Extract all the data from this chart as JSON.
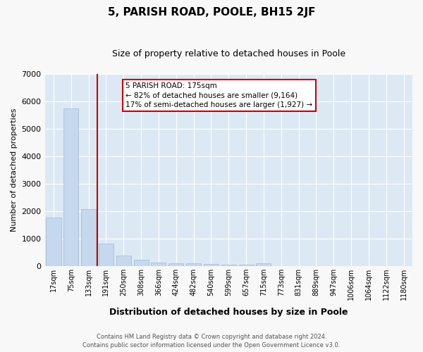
{
  "title": "5, PARISH ROAD, POOLE, BH15 2JF",
  "subtitle": "Size of property relative to detached houses in Poole",
  "xlabel": "Distribution of detached houses by size in Poole",
  "ylabel": "Number of detached properties",
  "bar_labels": [
    "17sqm",
    "75sqm",
    "133sqm",
    "191sqm",
    "250sqm",
    "308sqm",
    "366sqm",
    "424sqm",
    "482sqm",
    "540sqm",
    "599sqm",
    "657sqm",
    "715sqm",
    "773sqm",
    "831sqm",
    "889sqm",
    "947sqm",
    "1006sqm",
    "1064sqm",
    "1122sqm",
    "1180sqm"
  ],
  "bar_values": [
    1750,
    5750,
    2075,
    800,
    375,
    230,
    120,
    90,
    90,
    70,
    50,
    50,
    90,
    0,
    0,
    0,
    0,
    0,
    0,
    0,
    0
  ],
  "bar_color": "#c5d8ed",
  "bar_edge_color": "#a0b8d0",
  "annotation_text": "5 PARISH ROAD: 175sqm\n← 82% of detached houses are smaller (9,164)\n17% of semi-detached houses are larger (1,927) →",
  "annotation_box_facecolor": "#ffffff",
  "annotation_box_edgecolor": "#cc0000",
  "vline_x": 2.5,
  "vline_color": "#cc0000",
  "plot_bg_color": "#dce9f5",
  "fig_bg_color": "#f8f8f8",
  "grid_color": "#ffffff",
  "ylim": [
    0,
    7000
  ],
  "yticks": [
    0,
    1000,
    2000,
    3000,
    4000,
    5000,
    6000,
    7000
  ],
  "footer_line1": "Contains HM Land Registry data © Crown copyright and database right 2024.",
  "footer_line2": "Contains public sector information licensed under the Open Government Licence v3.0."
}
